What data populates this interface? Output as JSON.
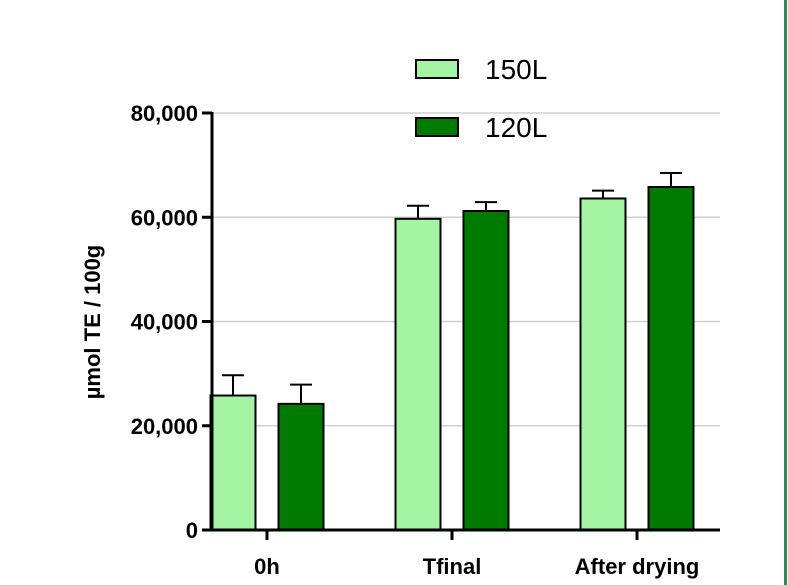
{
  "chart_data": {
    "type": "bar",
    "title": "",
    "xlabel": "",
    "ylabel": "µmol TE / 100g",
    "ylim": [
      0,
      80000
    ],
    "yticks": [
      0,
      20000,
      40000,
      60000,
      80000
    ],
    "ytick_labels": [
      "0",
      "20,000",
      "40,000",
      "60,000",
      "80,000"
    ],
    "grid": true,
    "legend_position": "top-right",
    "categories": [
      "0h",
      "Tfinal",
      "After drying"
    ],
    "series": [
      {
        "name": "150L",
        "color": "#a3f5a3",
        "values": [
          25800,
          59700,
          63600
        ],
        "errors": [
          3900,
          2500,
          1500
        ]
      },
      {
        "name": "120L",
        "color": "#007a00",
        "values": [
          24200,
          61200,
          65800
        ],
        "errors": [
          3700,
          1700,
          2700
        ]
      }
    ]
  }
}
